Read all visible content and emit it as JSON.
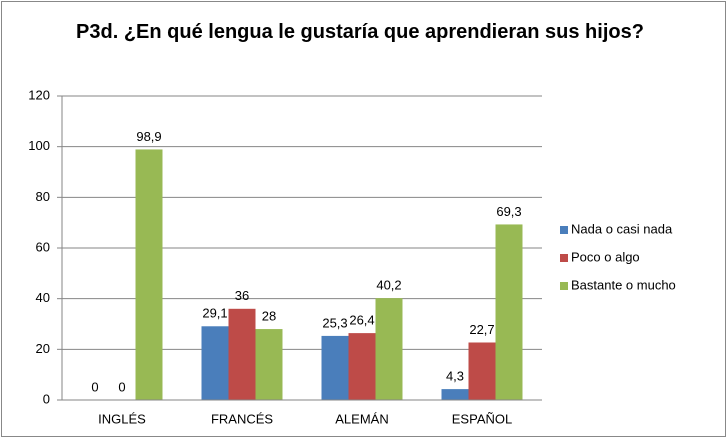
{
  "chart_data": {
    "type": "bar",
    "title": "P3d. ¿En qué lengua le gustaría que aprendieran sus hijos?",
    "categories": [
      "INGLÉS",
      "FRANCÉS",
      "ALEMÁN",
      "ESPAÑOL"
    ],
    "series": [
      {
        "name": "Nada o casi nada",
        "color": "#4a7ebb",
        "values": [
          0,
          29.1,
          25.3,
          4.3
        ],
        "value_labels": [
          "0",
          "29,1",
          "25,3",
          "4,3"
        ]
      },
      {
        "name": "Poco o algo",
        "color": "#be4b48",
        "values": [
          0,
          36,
          26.4,
          22.7
        ],
        "value_labels": [
          "0",
          "36",
          "26,4",
          "22,7"
        ]
      },
      {
        "name": "Bastante o mucho",
        "color": "#98b954",
        "values": [
          98.9,
          28,
          40.2,
          69.3
        ],
        "value_labels": [
          "98,9",
          "28",
          "40,2",
          "69,3"
        ]
      }
    ],
    "ylim": [
      0,
      120
    ],
    "yticks": [
      0,
      20,
      40,
      60,
      80,
      100,
      120
    ],
    "grid": true,
    "legend": "right"
  }
}
